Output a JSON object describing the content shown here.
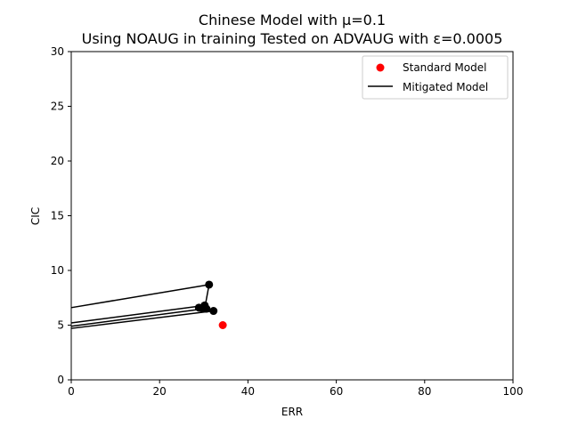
{
  "chart_data": {
    "type": "scatter",
    "title": "Chinese Model with μ=0.1",
    "subtitle": "Using NOAUG in training Tested on ADVAUG with ε=0.0005",
    "xlabel": "ERR",
    "ylabel": "CIC",
    "xlim": [
      0,
      100
    ],
    "ylim": [
      0,
      30
    ],
    "xticks": [
      0,
      20,
      40,
      60,
      80,
      100
    ],
    "yticks": [
      0,
      5,
      10,
      15,
      20,
      25,
      30
    ],
    "grid": false,
    "legend_position": "top-right",
    "series": [
      {
        "name": "Standard Model",
        "kind": "scatter",
        "color": "#ff0000",
        "points": [
          [
            34.3,
            5.0
          ]
        ]
      },
      {
        "name": "Mitigated Model",
        "kind": "line",
        "color": "#000000",
        "segments": [
          [
            [
              0,
              6.6
            ],
            [
              31.2,
              8.7
            ]
          ],
          [
            [
              31.2,
              8.7
            ],
            [
              30.2,
              6.5
            ]
          ],
          [
            [
              0,
              5.2
            ],
            [
              30.2,
              6.8
            ]
          ],
          [
            [
              30.2,
              6.8
            ],
            [
              28.9,
              6.6
            ]
          ],
          [
            [
              0,
              4.9
            ],
            [
              30.2,
              6.5
            ]
          ],
          [
            [
              30.2,
              6.5
            ],
            [
              29.8,
              6.5
            ]
          ],
          [
            [
              0,
              4.7
            ],
            [
              32.2,
              6.3
            ]
          ],
          [
            [
              32.2,
              6.3
            ],
            [
              29.2,
              6.5
            ]
          ]
        ],
        "points": [
          [
            31.2,
            8.7
          ],
          [
            30.2,
            6.8
          ],
          [
            28.9,
            6.6
          ],
          [
            29.8,
            6.5
          ],
          [
            30.6,
            6.5
          ],
          [
            32.2,
            6.3
          ]
        ]
      }
    ]
  }
}
